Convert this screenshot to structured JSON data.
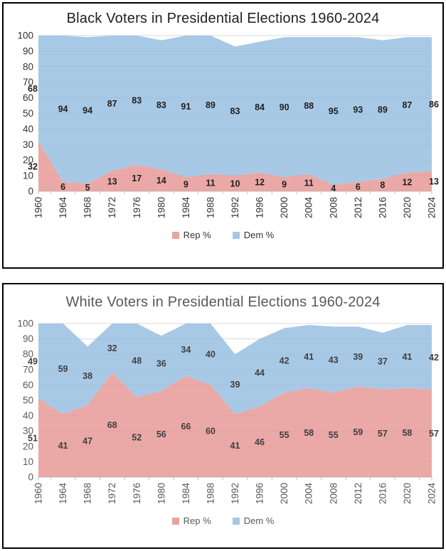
{
  "chart_data": [
    {
      "type": "area",
      "stacked": true,
      "title": "Black Voters in Presidential Elections 1960-2024",
      "title_color": "#1f1f1f",
      "axis_label_color": "#333333",
      "data_label_color": "#1f1f1f",
      "legend_text_color": "#333333",
      "x": [
        1960,
        1964,
        1968,
        1972,
        1976,
        1980,
        1984,
        1988,
        1992,
        1996,
        2000,
        2004,
        2008,
        2012,
        2016,
        2020,
        2024
      ],
      "series": [
        {
          "name": "Rep %",
          "color": "#E8A3A0",
          "fill": "#E59390",
          "values": [
            32,
            6,
            5,
            13,
            17,
            14,
            9,
            11,
            10,
            12,
            9,
            11,
            4,
            6,
            8,
            12,
            13
          ]
        },
        {
          "name": "Dem %",
          "color": "#A5C8E7",
          "fill": "#92BCE0",
          "values": [
            68,
            94,
            94,
            87,
            83,
            83,
            91,
            89,
            83,
            84,
            90,
            88,
            95,
            93,
            89,
            87,
            86
          ]
        }
      ],
      "ylim": [
        0,
        100
      ],
      "ytick_step": 10,
      "grid": true,
      "grid_color": "#D9D9D9",
      "axis_line_color": "#BFBFBF",
      "legend_position": "bottom"
    },
    {
      "type": "area",
      "stacked": true,
      "title": "White Voters in Presidential Elections 1960-2024",
      "title_color": "#595959",
      "axis_label_color": "#595959",
      "data_label_color": "#404040",
      "legend_text_color": "#595959",
      "x": [
        1960,
        1964,
        1968,
        1972,
        1976,
        1980,
        1984,
        1988,
        1992,
        1996,
        2000,
        2004,
        2008,
        2012,
        2016,
        2020,
        2024
      ],
      "series": [
        {
          "name": "Rep %",
          "color": "#E8A3A0",
          "fill": "#E59390",
          "values": [
            51,
            41,
            47,
            68,
            52,
            56,
            66,
            60,
            41,
            46,
            55,
            58,
            55,
            59,
            57,
            58,
            57
          ]
        },
        {
          "name": "Dem %",
          "color": "#A5C8E7",
          "fill": "#92BCE0",
          "values": [
            49,
            59,
            38,
            32,
            48,
            36,
            34,
            40,
            39,
            44,
            42,
            41,
            43,
            39,
            37,
            41,
            42
          ]
        }
      ],
      "ylim": [
        0,
        100
      ],
      "ytick_step": 10,
      "grid": true,
      "grid_color": "#D9D9D9",
      "axis_line_color": "#BFBFBF",
      "legend_position": "bottom"
    }
  ]
}
